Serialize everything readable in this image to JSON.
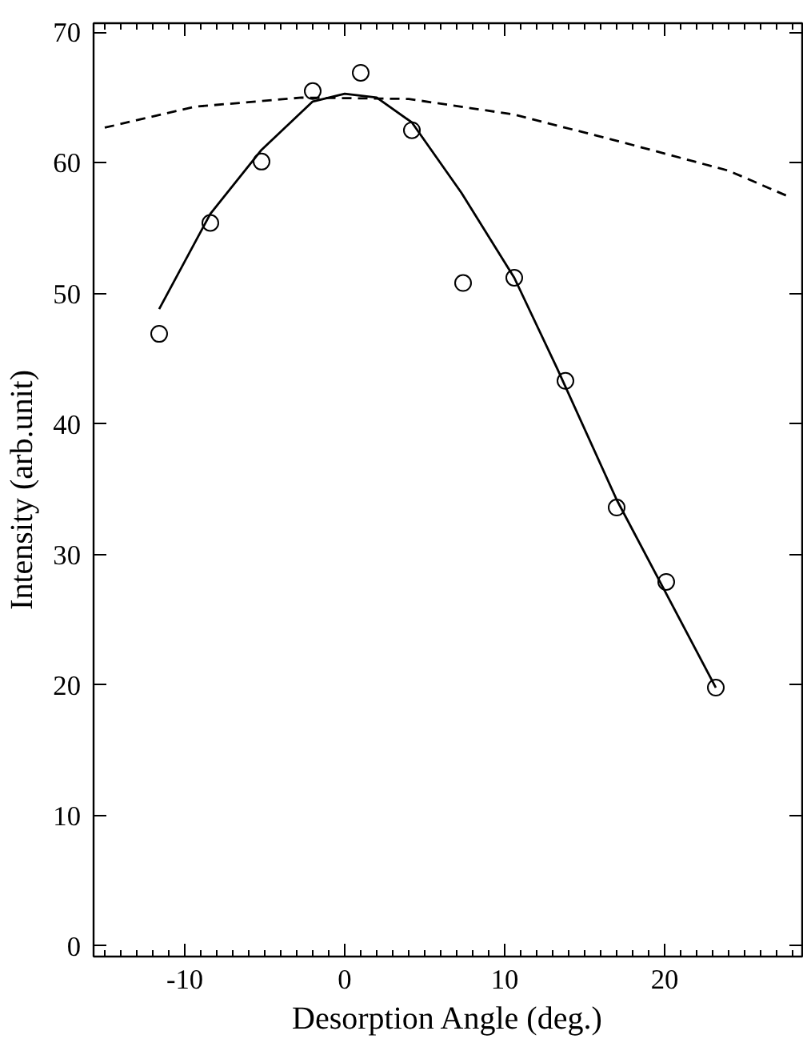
{
  "chart_data": {
    "type": "scatter",
    "xlabel": "Desorption Angle (deg.)",
    "ylabel": "Intensity (arb.unit)",
    "xlim": [
      -15.7,
      28.6
    ],
    "ylim": [
      -0.8,
      70.7
    ],
    "xticks": [
      -10,
      0,
      10,
      20
    ],
    "yticks": [
      0,
      10,
      20,
      30,
      40,
      50,
      60,
      70
    ],
    "grid": false,
    "series": [
      {
        "color": "#000000",
        "marker": "circle",
        "x": [
          -11.6,
          -8.4,
          -5.2,
          -2.0,
          1.0,
          4.2,
          7.4,
          10.6,
          13.8,
          17.0,
          20.1,
          23.2
        ],
        "values": [
          46.9,
          55.4,
          60.1,
          65.5,
          66.9,
          62.5,
          50.8,
          51.2,
          43.3,
          33.6,
          27.9,
          19.8
        ]
      },
      {
        "type": "line",
        "color": "#000000",
        "line_style": "solid",
        "marker": "none",
        "x": [
          -11.6,
          -8.4,
          -5.2,
          -2.0,
          0.0,
          2.0,
          4.2,
          7.3,
          10.6,
          13.3,
          17.0,
          20.1,
          23.2
        ],
        "values": [
          48.8,
          56.1,
          61.0,
          64.7,
          65.3,
          65.0,
          63.1,
          57.7,
          51.2,
          44.2,
          34.2,
          27.0,
          19.8
        ]
      },
      {
        "type": "line",
        "color": "#000000",
        "line_style": "dashed",
        "marker": "none",
        "x": [
          -15.0,
          -9.4,
          -2.7,
          4.0,
          10.6,
          17.3,
          24.0,
          27.6
        ],
        "values": [
          62.7,
          64.3,
          65.0,
          64.9,
          63.7,
          61.6,
          59.4,
          57.5
        ]
      }
    ]
  }
}
